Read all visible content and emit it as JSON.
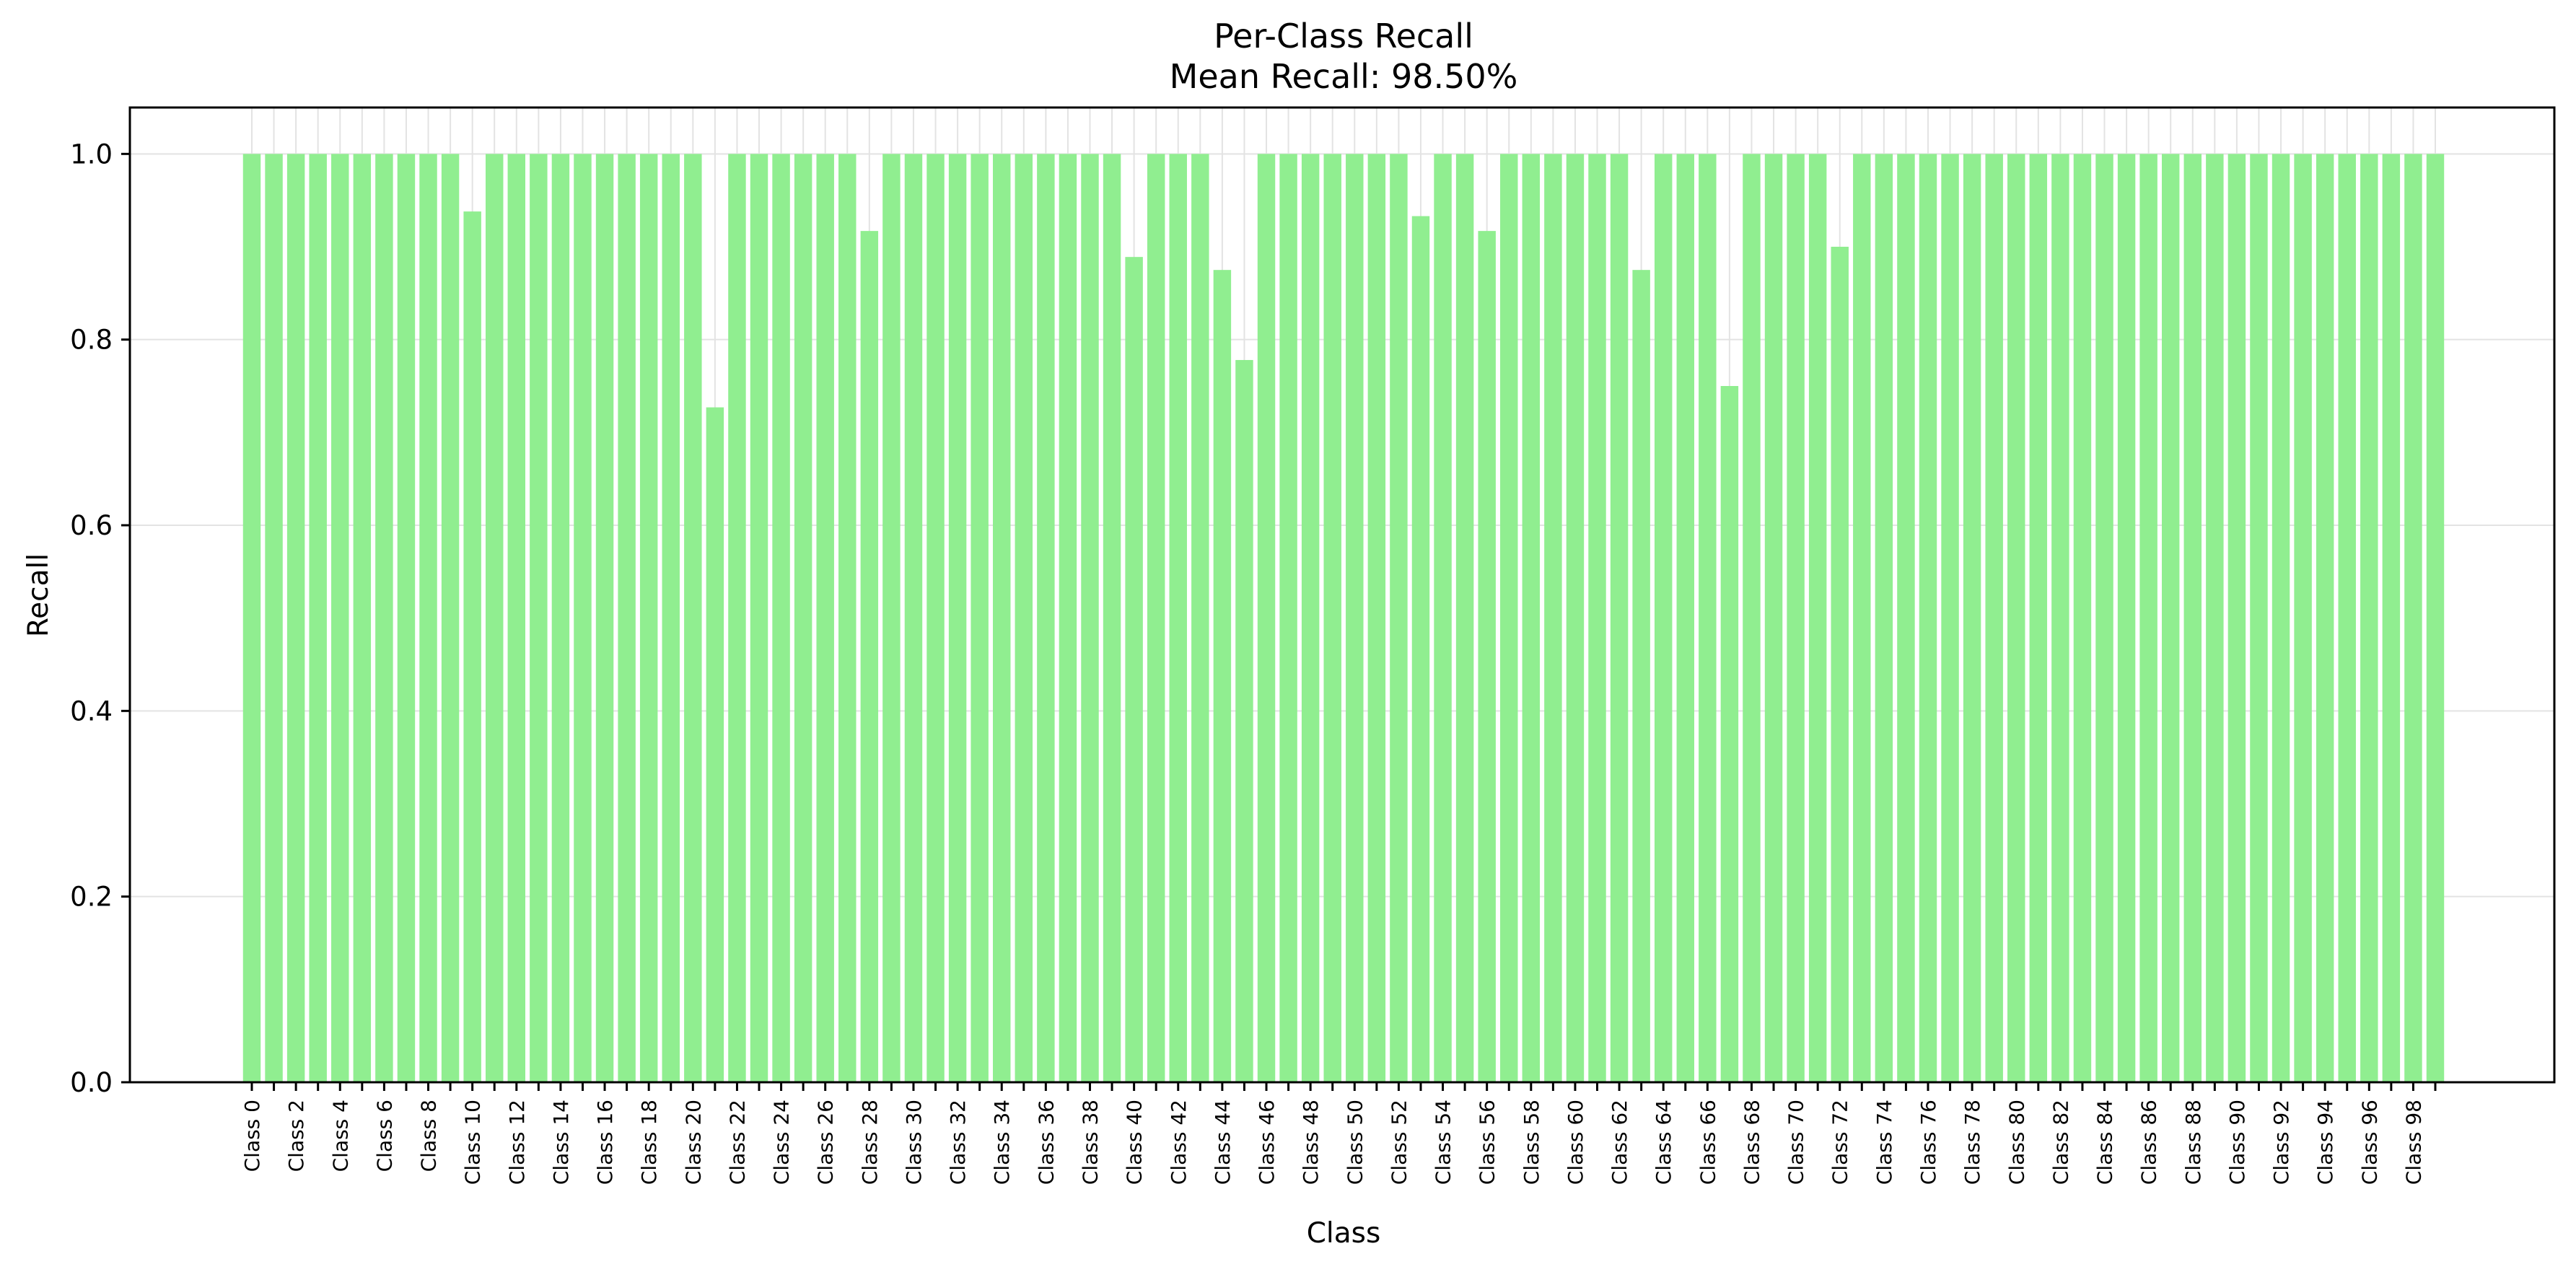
{
  "chart_data": {
    "type": "bar",
    "title": "Per-Class Recall",
    "subtitle": "Mean Recall: 98.50%",
    "xlabel": "Class",
    "ylabel": "Recall",
    "ylim": [
      0,
      1.05
    ],
    "yticks": [
      "0.0",
      "0.2",
      "0.4",
      "0.6",
      "0.8",
      "1.0"
    ],
    "ytick_values": [
      0,
      0.2,
      0.4,
      0.6,
      0.8,
      1.0
    ],
    "categories": [
      "Class 0",
      "Class 1",
      "Class 2",
      "Class 3",
      "Class 4",
      "Class 5",
      "Class 6",
      "Class 7",
      "Class 8",
      "Class 9",
      "Class 10",
      "Class 11",
      "Class 12",
      "Class 13",
      "Class 14",
      "Class 15",
      "Class 16",
      "Class 17",
      "Class 18",
      "Class 19",
      "Class 20",
      "Class 21",
      "Class 22",
      "Class 23",
      "Class 24",
      "Class 25",
      "Class 26",
      "Class 27",
      "Class 28",
      "Class 29",
      "Class 30",
      "Class 31",
      "Class 32",
      "Class 33",
      "Class 34",
      "Class 35",
      "Class 36",
      "Class 37",
      "Class 38",
      "Class 39",
      "Class 40",
      "Class 41",
      "Class 42",
      "Class 43",
      "Class 44",
      "Class 45",
      "Class 46",
      "Class 47",
      "Class 48",
      "Class 49",
      "Class 50",
      "Class 51",
      "Class 52",
      "Class 53",
      "Class 54",
      "Class 55",
      "Class 56",
      "Class 57",
      "Class 58",
      "Class 59",
      "Class 60",
      "Class 61",
      "Class 62",
      "Class 63",
      "Class 64",
      "Class 65",
      "Class 66",
      "Class 67",
      "Class 68",
      "Class 69",
      "Class 70",
      "Class 71",
      "Class 72",
      "Class 73",
      "Class 74",
      "Class 75",
      "Class 76",
      "Class 77",
      "Class 78",
      "Class 79",
      "Class 80",
      "Class 81",
      "Class 82",
      "Class 83",
      "Class 84",
      "Class 85",
      "Class 86",
      "Class 87",
      "Class 88",
      "Class 89",
      "Class 90",
      "Class 91",
      "Class 92",
      "Class 93",
      "Class 94",
      "Class 95",
      "Class 96",
      "Class 97",
      "Class 98",
      "Class 99"
    ],
    "tick_labels_shown_every": 2,
    "values": [
      1.0,
      1.0,
      1.0,
      1.0,
      1.0,
      1.0,
      1.0,
      1.0,
      1.0,
      1.0,
      0.938,
      1.0,
      1.0,
      1.0,
      1.0,
      1.0,
      1.0,
      1.0,
      1.0,
      1.0,
      1.0,
      0.727,
      1.0,
      1.0,
      1.0,
      1.0,
      1.0,
      1.0,
      0.917,
      1.0,
      1.0,
      1.0,
      1.0,
      1.0,
      1.0,
      1.0,
      1.0,
      1.0,
      1.0,
      1.0,
      0.889,
      1.0,
      1.0,
      1.0,
      0.875,
      0.778,
      1.0,
      1.0,
      1.0,
      1.0,
      1.0,
      1.0,
      1.0,
      0.933,
      1.0,
      1.0,
      0.917,
      1.0,
      1.0,
      1.0,
      1.0,
      1.0,
      1.0,
      0.875,
      1.0,
      1.0,
      1.0,
      0.75,
      1.0,
      1.0,
      1.0,
      1.0,
      0.9,
      1.0,
      1.0,
      1.0,
      1.0,
      1.0,
      1.0,
      1.0,
      1.0,
      1.0,
      1.0,
      1.0,
      1.0,
      1.0,
      1.0,
      1.0,
      1.0,
      1.0,
      1.0,
      1.0,
      1.0,
      1.0,
      1.0,
      1.0,
      1.0,
      1.0,
      1.0,
      1.0
    ],
    "bar_color": "#90ee90",
    "grid": true,
    "grid_axis": "both",
    "legend": "none"
  }
}
